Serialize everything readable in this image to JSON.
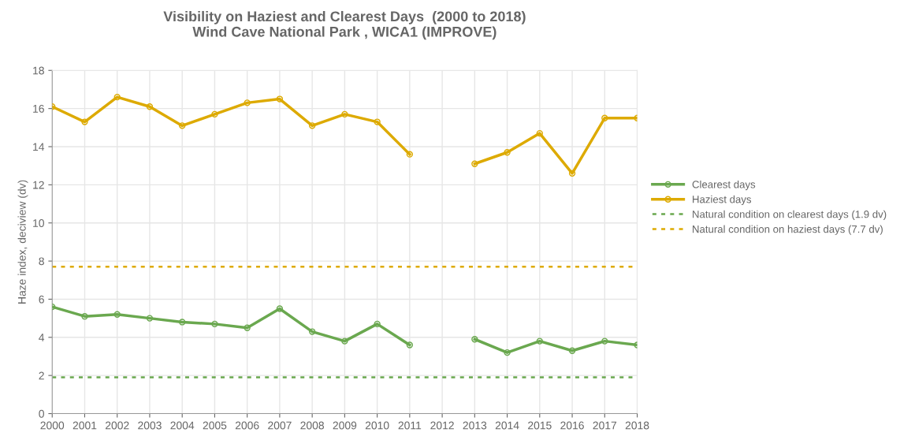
{
  "chart_data": {
    "type": "line",
    "title": "Visibility on Haziest and Clearest Days  (2000 to 2018)\nWind Cave National Park , WICA1 (IMPROVE)",
    "ylabel": "Haze index, deciview (dv)",
    "categories": [
      "2000",
      "2001",
      "2002",
      "2003",
      "2004",
      "2005",
      "2006",
      "2007",
      "2008",
      "2009",
      "2010",
      "2011",
      "2012",
      "2013",
      "2014",
      "2015",
      "2016",
      "2017",
      "2018"
    ],
    "series": [
      {
        "name": "Clearest days",
        "color": "#6aa84f",
        "values": [
          5.6,
          5.1,
          5.2,
          5.0,
          4.8,
          4.7,
          4.5,
          5.5,
          4.3,
          3.8,
          4.7,
          3.6,
          null,
          3.9,
          3.2,
          3.8,
          3.3,
          3.8,
          3.6
        ]
      },
      {
        "name": "Haziest days",
        "color": "#ddaa00",
        "values": [
          16.1,
          15.3,
          16.6,
          16.1,
          15.1,
          15.7,
          16.3,
          16.5,
          15.1,
          15.7,
          15.3,
          13.6,
          null,
          13.1,
          13.7,
          14.7,
          12.6,
          15.5,
          15.5
        ]
      }
    ],
    "ref_lines": [
      {
        "axis": "y",
        "value": 1.9,
        "label": "Natural condition on clearest days (1.9 dv)",
        "color": "#6aa84f",
        "line_style": "dotted"
      },
      {
        "axis": "y",
        "value": 7.7,
        "label": "Natural condition on haziest days (7.7 dv)",
        "color": "#ddaa00",
        "line_style": "dotted"
      }
    ],
    "ylim": [
      0,
      18
    ],
    "yticks": [
      0,
      2,
      4,
      6,
      8,
      10,
      12,
      14,
      16,
      18
    ],
    "grid": true,
    "legend": "right",
    "marker": "circle",
    "line_style": "solid"
  }
}
